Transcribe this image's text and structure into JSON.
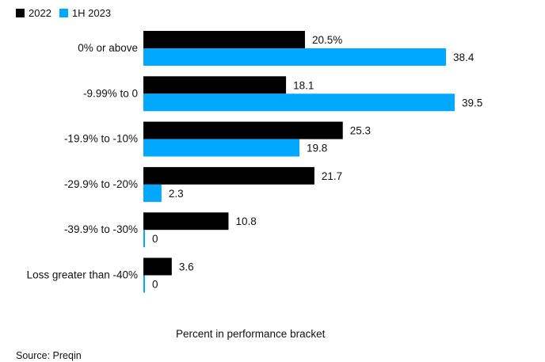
{
  "chart_data": {
    "type": "bar",
    "orientation": "horizontal",
    "categories": [
      "0% or above",
      "-9.99% to 0",
      "-19.9% to -10%",
      "-29.9% to -20%",
      "-39.9% to -30%",
      "Loss greater than -40%"
    ],
    "series": [
      {
        "name": "2022",
        "color": "#000000",
        "values": [
          20.5,
          18.1,
          25.3,
          21.7,
          10.8,
          3.6
        ],
        "labels": [
          "20.5%",
          "18.1",
          "25.3",
          "21.7",
          "10.8",
          "3.6"
        ]
      },
      {
        "name": "1H 2023",
        "color": "#00a8ff",
        "values": [
          38.4,
          39.5,
          19.8,
          2.3,
          0,
          0
        ],
        "labels": [
          "38.4",
          "39.5",
          "19.8",
          "2.3",
          "0",
          "0"
        ]
      }
    ],
    "xlabel": "Percent in performance bracket",
    "xlim": [
      0,
      40
    ],
    "grid": false,
    "legend": "top-left"
  },
  "source": "Source: Preqin"
}
